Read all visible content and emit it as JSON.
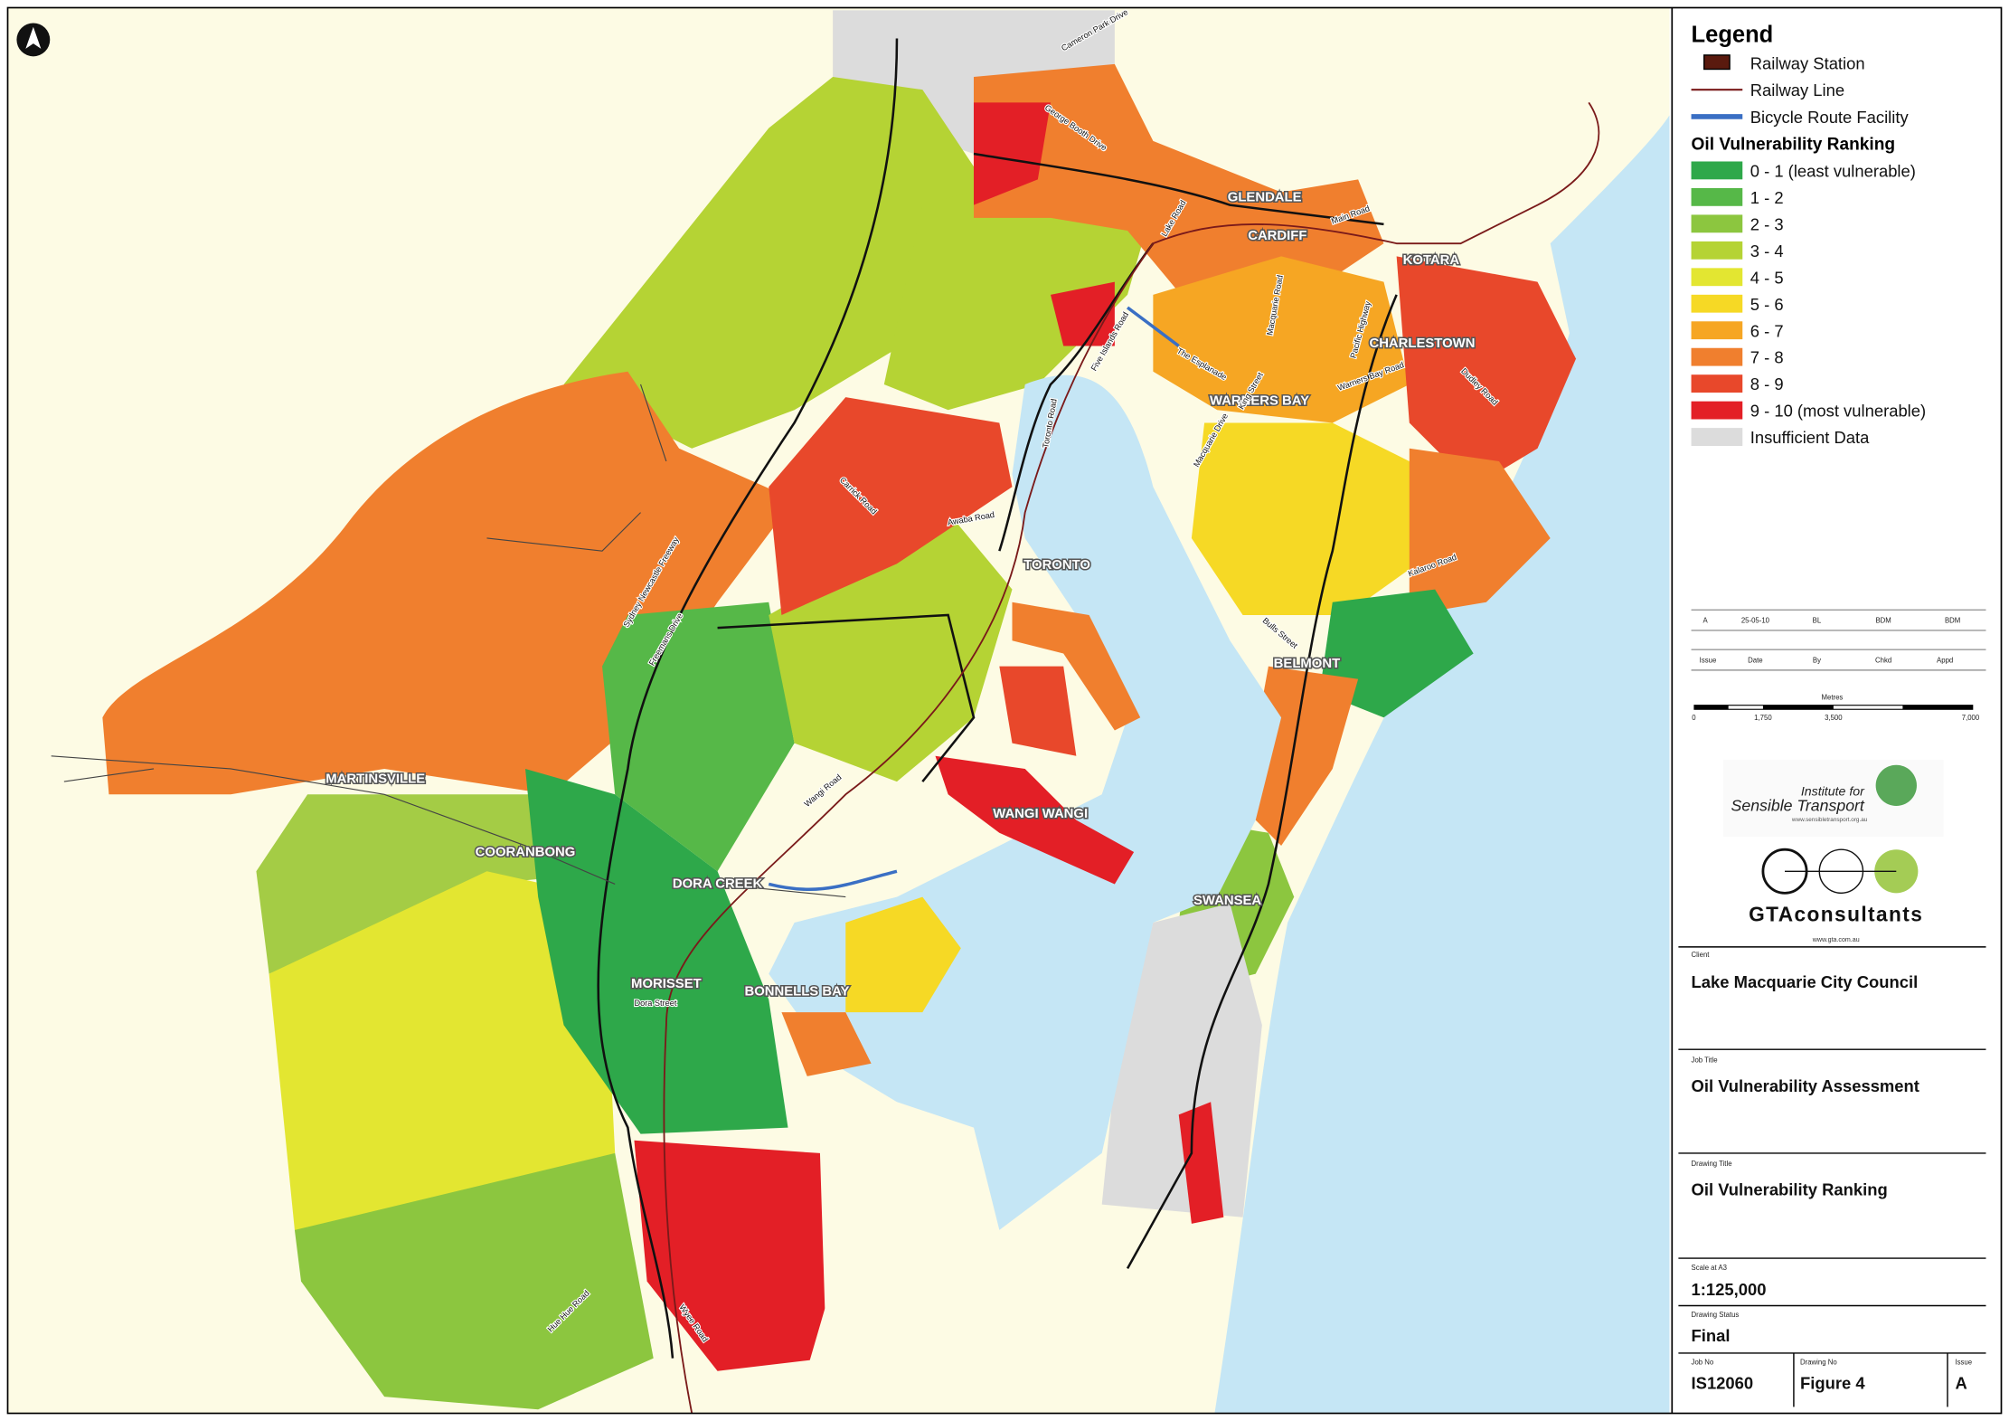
{
  "legend": {
    "title": "Legend",
    "items": [
      "Railway Station",
      "Railway Line",
      "Bicycle Route Facility"
    ],
    "ranking_title": "Oil Vulnerability Ranking",
    "ranking": [
      {
        "label": "0 - 1 (least vulnerable)",
        "color": "#2ea84a"
      },
      {
        "label": "1 - 2",
        "color": "#56b848"
      },
      {
        "label": "2 - 3",
        "color": "#8cc63f"
      },
      {
        "label": "3 - 4",
        "color": "#b5d334"
      },
      {
        "label": "4 - 5",
        "color": "#e3e631"
      },
      {
        "label": "5 - 6",
        "color": "#f6d925"
      },
      {
        "label": "6 - 7",
        "color": "#f6a623"
      },
      {
        "label": "7 - 8",
        "color": "#f07f2e"
      },
      {
        "label": "8 - 9",
        "color": "#e8482b"
      },
      {
        "label": "9 - 10 (most vulnerable)",
        "color": "#e31f26"
      },
      {
        "label": "Insufficient Data",
        "color": "#dcdcdc"
      }
    ]
  },
  "map": {
    "places": [
      "GLENDALE",
      "CARDIFF",
      "KOTARA",
      "CHARLESTOWN",
      "WARNERS BAY",
      "TORONTO",
      "BELMONT",
      "MARTINSVILLE",
      "COORANBONG",
      "DORA CREEK",
      "WANGI WANGI",
      "SWANSEA",
      "MORISSET",
      "BONNELLS BAY"
    ],
    "roads": [
      "Cameron Park Drive",
      "George Booth Drive",
      "Lake Road",
      "Main Road",
      "Five Islands Road",
      "The Esplanade",
      "Macquarie Road",
      "Warners Bay Road",
      "King Street",
      "Macquarie Drive",
      "Toronto Road",
      "Awaba Road",
      "Freemans Drive",
      "Sydney Newcastle Freeway",
      "Wangi Road",
      "Kalaroo Road",
      "Dudley Road",
      "Bulls Street",
      "Hue Hue Road",
      "Wyee Road",
      "Carrick Road",
      "Dora Street",
      "Pacific Highway"
    ]
  },
  "title_block": {
    "revision": {
      "values": [
        "A",
        "25-05-10",
        "BL",
        "BDM",
        "BDM"
      ],
      "headers": [
        "Issue",
        "Date",
        "By",
        "Chkd",
        "Appd"
      ]
    },
    "scale_bar": {
      "unit": "Metres",
      "ticks": [
        "0",
        "1,750",
        "3,500",
        "7,000"
      ]
    },
    "logos": {
      "ist_line1": "Institute for",
      "ist_line2": "Sensible Transport",
      "ist_url": "www.sensibletransport.org.au",
      "gta": "GTAconsultants",
      "gta_url": "www.gta.com.au"
    },
    "client_label": "Client",
    "client": "Lake Macquarie City Council",
    "job_title_label": "Job Title",
    "job_title": "Oil Vulnerability Assessment",
    "drawing_title_label": "Drawing Title",
    "drawing_title": "Oil Vulnerability Ranking",
    "scale_label": "Scale at A3",
    "scale": "1:125,000",
    "status_label": "Drawing Status",
    "status": "Final",
    "job_no_label": "Job No",
    "job_no": "IS12060",
    "drawing_no_label": "Drawing No",
    "drawing_no": "Figure 4",
    "issue_label": "Issue",
    "issue": "A"
  }
}
